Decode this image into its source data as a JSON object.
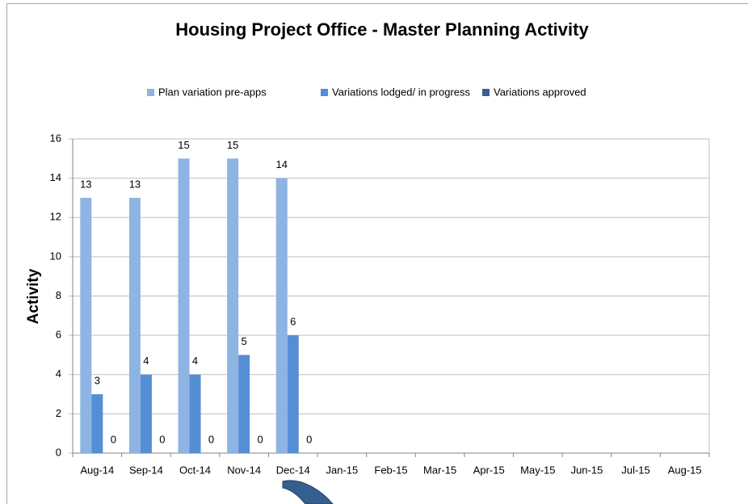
{
  "chart_data": {
    "type": "bar",
    "title": "Housing Project Office - Master Planning Activity",
    "y_label": "Activity",
    "categories": [
      "Aug-14",
      "Sep-14",
      "Oct-14",
      "Nov-14",
      "Dec-14",
      "Jan-15",
      "Feb-15",
      "Mar-15",
      "Apr-15",
      "May-15",
      "Jun-15",
      "Jul-15",
      "Aug-15"
    ],
    "series": [
      {
        "name": "Plan variation pre-apps",
        "color": "#8db4e2",
        "values": [
          13,
          13,
          15,
          15,
          14,
          null,
          null,
          null,
          null,
          null,
          null,
          null,
          null
        ]
      },
      {
        "name": "Variations lodged/ in progress",
        "color": "#558ed5",
        "values": [
          3,
          4,
          4,
          5,
          6,
          null,
          null,
          null,
          null,
          null,
          null,
          null,
          null
        ]
      },
      {
        "name": "Variations approved",
        "color": "#376092",
        "values": [
          0,
          0,
          0,
          0,
          0,
          null,
          null,
          null,
          null,
          null,
          null,
          null,
          null
        ]
      }
    ],
    "ylim": [
      0,
      16
    ],
    "yticks": [
      0,
      2,
      4,
      6,
      8,
      10,
      12,
      14,
      16
    ],
    "grid": true,
    "legend": "top"
  }
}
